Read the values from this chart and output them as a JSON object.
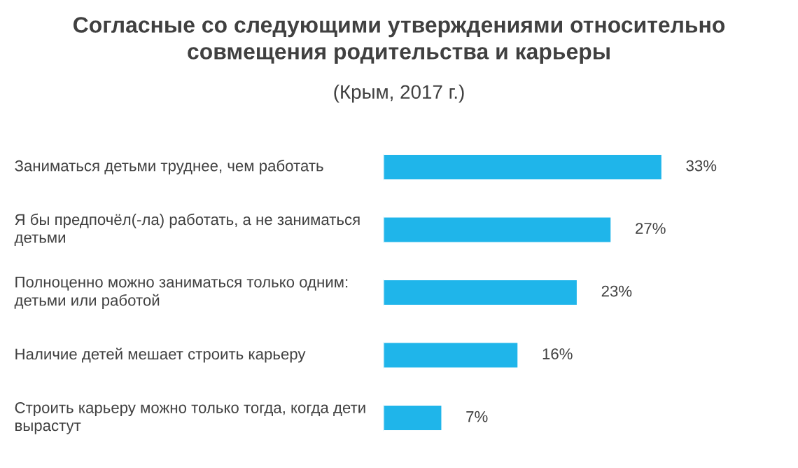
{
  "chart_data": {
    "type": "bar",
    "orientation": "horizontal",
    "title": "Согласные со следующими утверждениями относительно\nсовмещения родительства и карьеры",
    "subtitle": "(Крым, 2017 г.)",
    "categories": [
      "Заниматься детьми труднее, чем работать",
      "Я бы предпочёл(-ла) работать, а не заниматься\nдетьми",
      "Полноценно можно заниматься только одним:\nдетьми или работой",
      "Наличие детей мешает строить карьеру",
      "Строить карьеру можно только тогда, когда дети\nвырастут"
    ],
    "values": [
      33,
      27,
      23,
      16,
      7
    ],
    "value_labels": [
      "33%",
      "27%",
      "23%",
      "16%",
      "7%"
    ],
    "color": "#1fb5ea"
  }
}
